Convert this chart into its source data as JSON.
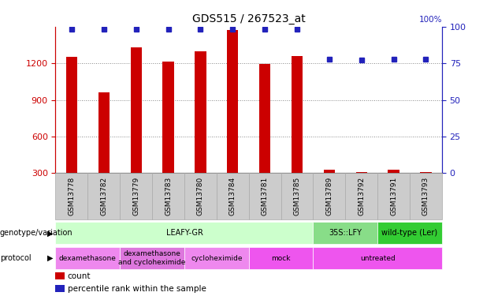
{
  "title": "GDS515 / 267523_at",
  "samples": [
    "GSM13778",
    "GSM13782",
    "GSM13779",
    "GSM13783",
    "GSM13780",
    "GSM13784",
    "GSM13781",
    "GSM13785",
    "GSM13789",
    "GSM13792",
    "GSM13791",
    "GSM13793"
  ],
  "counts": [
    1253,
    960,
    1330,
    1215,
    1300,
    1470,
    1195,
    1260,
    330,
    310,
    330,
    310
  ],
  "percentiles": [
    98,
    98,
    98,
    98,
    98,
    98,
    98,
    98,
    78,
    77,
    78,
    78
  ],
  "ylim_left": [
    300,
    1500
  ],
  "ylim_right": [
    0,
    100
  ],
  "yticks_left": [
    300,
    600,
    900,
    1200
  ],
  "yticks_right": [
    0,
    25,
    50,
    75,
    100
  ],
  "bar_color": "#cc0000",
  "dot_color": "#2222bb",
  "grid_color": "#888888",
  "axis_color_left": "#cc0000",
  "axis_color_right": "#2222bb",
  "bar_width": 0.35,
  "genotype_groups": [
    {
      "label": "LEAFY-GR",
      "start": 0,
      "end": 8,
      "color": "#ccffcc"
    },
    {
      "label": "35S::LFY",
      "start": 8,
      "end": 10,
      "color": "#88dd88"
    },
    {
      "label": "wild-type (Ler)",
      "start": 10,
      "end": 12,
      "color": "#33cc33"
    }
  ],
  "protocol_groups": [
    {
      "label": "dexamethasone",
      "start": 0,
      "end": 2,
      "color": "#ee88ee"
    },
    {
      "label": "dexamethasone\nand cycloheximide",
      "start": 2,
      "end": 4,
      "color": "#dd77dd"
    },
    {
      "label": "cycloheximide",
      "start": 4,
      "end": 6,
      "color": "#ee88ee"
    },
    {
      "label": "mock",
      "start": 6,
      "end": 8,
      "color": "#ee55ee"
    },
    {
      "label": "untreated",
      "start": 8,
      "end": 12,
      "color": "#ee55ee"
    }
  ],
  "legend_items": [
    {
      "label": "count",
      "color": "#cc0000"
    },
    {
      "label": "percentile rank within the sample",
      "color": "#2222bb"
    }
  ],
  "sample_box_color": "#cccccc",
  "sample_box_edge": "#aaaaaa"
}
